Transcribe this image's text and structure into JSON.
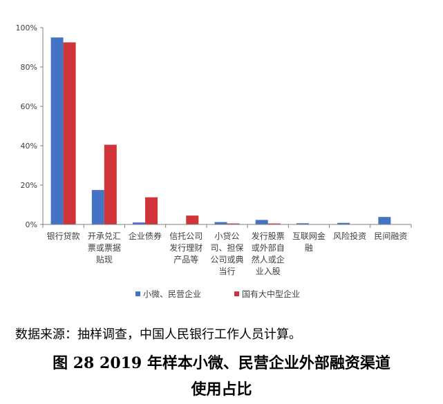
{
  "colors": {
    "series1": "#4472C4",
    "series2": "#D13438",
    "axis": "#7f7f7f",
    "text": "#404040"
  },
  "chart_data": {
    "type": "bar",
    "categories": [
      [
        "银行贷款"
      ],
      [
        "开承兑汇",
        "票或票据",
        "贴现"
      ],
      [
        "企业债券"
      ],
      [
        "信托公司",
        "发行理财",
        "产品等"
      ],
      [
        "小贷公",
        "司、担保",
        "公司或典",
        "当行"
      ],
      [
        "发行股票",
        "或外部自",
        "然人或企",
        "业入股"
      ],
      [
        "互联网金",
        "融"
      ],
      [
        "风险投资"
      ],
      [
        "民间融资"
      ]
    ],
    "series": [
      {
        "name": "小微、民营企业",
        "values": [
          95.0,
          17.5,
          1.0,
          0.0,
          1.2,
          2.3,
          0.6,
          0.8,
          3.8
        ]
      },
      {
        "name": "国有大中型企业",
        "values": [
          92.5,
          40.5,
          13.8,
          4.5,
          0.5,
          0.5,
          0.0,
          0.0,
          0.0
        ]
      }
    ],
    "ylim": [
      0,
      100
    ],
    "yticks": [
      0,
      20,
      40,
      60,
      80,
      100
    ],
    "ytick_labels": [
      "0%",
      "20%",
      "40%",
      "60%",
      "80%",
      "100%"
    ],
    "legend": "bottom",
    "grid": false
  },
  "source_note": "数据来源：抽样调查，中国人民银行工作人员计算。",
  "caption_line1": "图  28  2019 年样本小微、民营企业外部融资渠道",
  "caption_line2": "使用占比"
}
